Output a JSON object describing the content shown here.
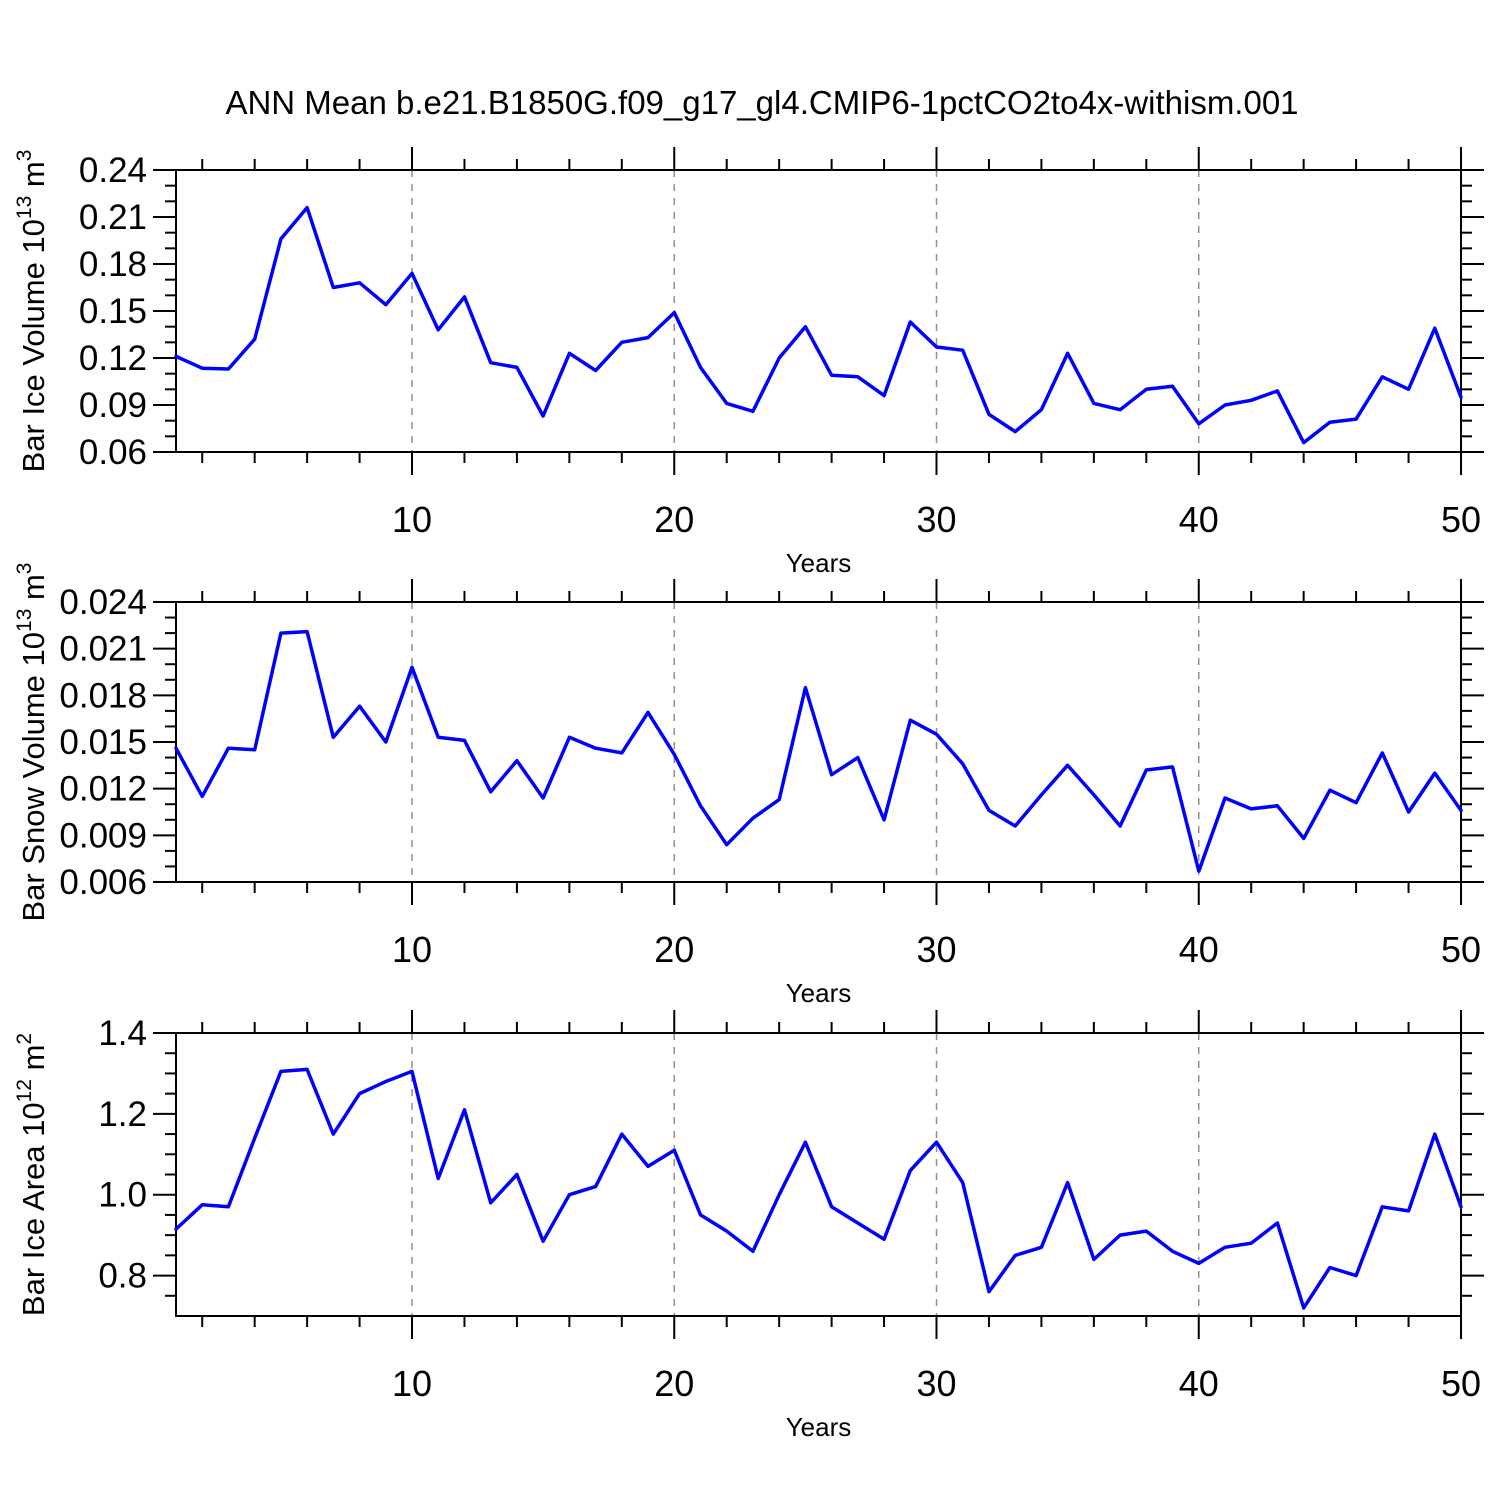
{
  "title": "ANN Mean b.e21.B1850G.f09_g17_gl4.CMIP6-1pctCO2to4x-withism.001",
  "colors": {
    "line": "#0000ff",
    "grid": "#909090",
    "axis": "#000000",
    "background": "#ffffff"
  },
  "years": [
    1,
    2,
    3,
    4,
    5,
    6,
    7,
    8,
    9,
    10,
    11,
    12,
    13,
    14,
    15,
    16,
    17,
    18,
    19,
    20,
    21,
    22,
    23,
    24,
    25,
    26,
    27,
    28,
    29,
    30,
    31,
    32,
    33,
    34,
    35,
    36,
    37,
    38,
    39,
    40,
    41,
    42,
    43,
    44,
    45,
    46,
    47,
    48,
    49,
    50
  ],
  "chart_data": [
    {
      "type": "line",
      "id": "ice-volume",
      "ylabel": "Bar Ice Volume 10^13^ m^3",
      "xlabel": "Years",
      "xlim": [
        1,
        50
      ],
      "ylim": [
        0.06,
        0.24
      ],
      "ytick_values": [
        0.06,
        0.09,
        0.12,
        0.15,
        0.18,
        0.21,
        0.24
      ],
      "ytick_labels": [
        "0.06",
        "0.09",
        "0.12",
        "0.15",
        "0.18",
        "0.21",
        "0.24"
      ],
      "ytick_minor_step": 0.01,
      "xtick_values": [
        10,
        20,
        30,
        40,
        50
      ],
      "xtick_labels": [
        "10",
        "20",
        "30",
        "40",
        "50"
      ],
      "xtick_minor_step": 2,
      "grid_x": [
        10,
        20,
        30,
        40
      ],
      "values": [
        0.121,
        0.1135,
        0.113,
        0.132,
        0.196,
        0.216,
        0.165,
        0.168,
        0.154,
        0.174,
        0.138,
        0.159,
        0.117,
        0.114,
        0.083,
        0.123,
        0.112,
        0.13,
        0.133,
        0.149,
        0.114,
        0.091,
        0.086,
        0.12,
        0.14,
        0.109,
        0.108,
        0.096,
        0.143,
        0.127,
        0.125,
        0.084,
        0.073,
        0.087,
        0.123,
        0.091,
        0.087,
        0.1,
        0.102,
        0.078,
        0.09,
        0.093,
        0.099,
        0.066,
        0.079,
        0.081,
        0.108,
        0.1,
        0.139,
        0.095
      ]
    },
    {
      "type": "line",
      "id": "snow-volume",
      "ylabel": "Bar Snow Volume 10^13^ m^3",
      "xlabel": "Years",
      "xlim": [
        1,
        50
      ],
      "ylim": [
        0.006,
        0.024
      ],
      "ytick_values": [
        0.006,
        0.009,
        0.012,
        0.015,
        0.018,
        0.021,
        0.024
      ],
      "ytick_labels": [
        "0.006",
        "0.009",
        "0.012",
        "0.015",
        "0.018",
        "0.021",
        "0.024"
      ],
      "ytick_minor_step": 0.001,
      "xtick_values": [
        10,
        20,
        30,
        40,
        50
      ],
      "xtick_labels": [
        "10",
        "20",
        "30",
        "40",
        "50"
      ],
      "xtick_minor_step": 2,
      "grid_x": [
        10,
        20,
        30,
        40
      ],
      "values": [
        0.0146,
        0.0115,
        0.0146,
        0.0145,
        0.022,
        0.0221,
        0.0153,
        0.0173,
        0.015,
        0.0198,
        0.0153,
        0.0151,
        0.0118,
        0.0138,
        0.0114,
        0.0153,
        0.0146,
        0.0143,
        0.0169,
        0.0142,
        0.0109,
        0.0084,
        0.0101,
        0.0113,
        0.0185,
        0.0129,
        0.014,
        0.01,
        0.0164,
        0.0155,
        0.0136,
        0.0106,
        0.0096,
        0.0116,
        0.0135,
        0.0116,
        0.0096,
        0.0132,
        0.0134,
        0.0067,
        0.0114,
        0.0107,
        0.0109,
        0.0088,
        0.0119,
        0.0111,
        0.0143,
        0.0105,
        0.013,
        0.0106
      ]
    },
    {
      "type": "line",
      "id": "ice-area",
      "ylabel": "Bar Ice Area 10^12^ m^2",
      "xlabel": "Years",
      "xlim": [
        1,
        50
      ],
      "ylim": [
        0.7,
        1.4
      ],
      "ytick_values": [
        0.8,
        1.0,
        1.2,
        1.4
      ],
      "ytick_labels": [
        "0.8",
        "1.0",
        "1.2",
        "1.4"
      ],
      "ytick_minor_step": 0.05,
      "xtick_values": [
        10,
        20,
        30,
        40,
        50
      ],
      "xtick_labels": [
        "10",
        "20",
        "30",
        "40",
        "50"
      ],
      "xtick_minor_step": 2,
      "grid_x": [
        10,
        20,
        30,
        40
      ],
      "values": [
        0.915,
        0.975,
        0.97,
        1.14,
        1.305,
        1.31,
        1.15,
        1.25,
        1.28,
        1.305,
        1.04,
        1.21,
        0.98,
        1.05,
        0.885,
        1.0,
        1.02,
        1.15,
        1.07,
        1.11,
        0.95,
        0.91,
        0.86,
        1.0,
        1.13,
        0.97,
        0.93,
        0.89,
        1.06,
        1.13,
        1.03,
        0.76,
        0.85,
        0.87,
        1.03,
        0.84,
        0.9,
        0.91,
        0.86,
        0.83,
        0.87,
        0.88,
        0.93,
        0.72,
        0.82,
        0.8,
        0.97,
        0.96,
        1.15,
        0.97
      ]
    }
  ]
}
